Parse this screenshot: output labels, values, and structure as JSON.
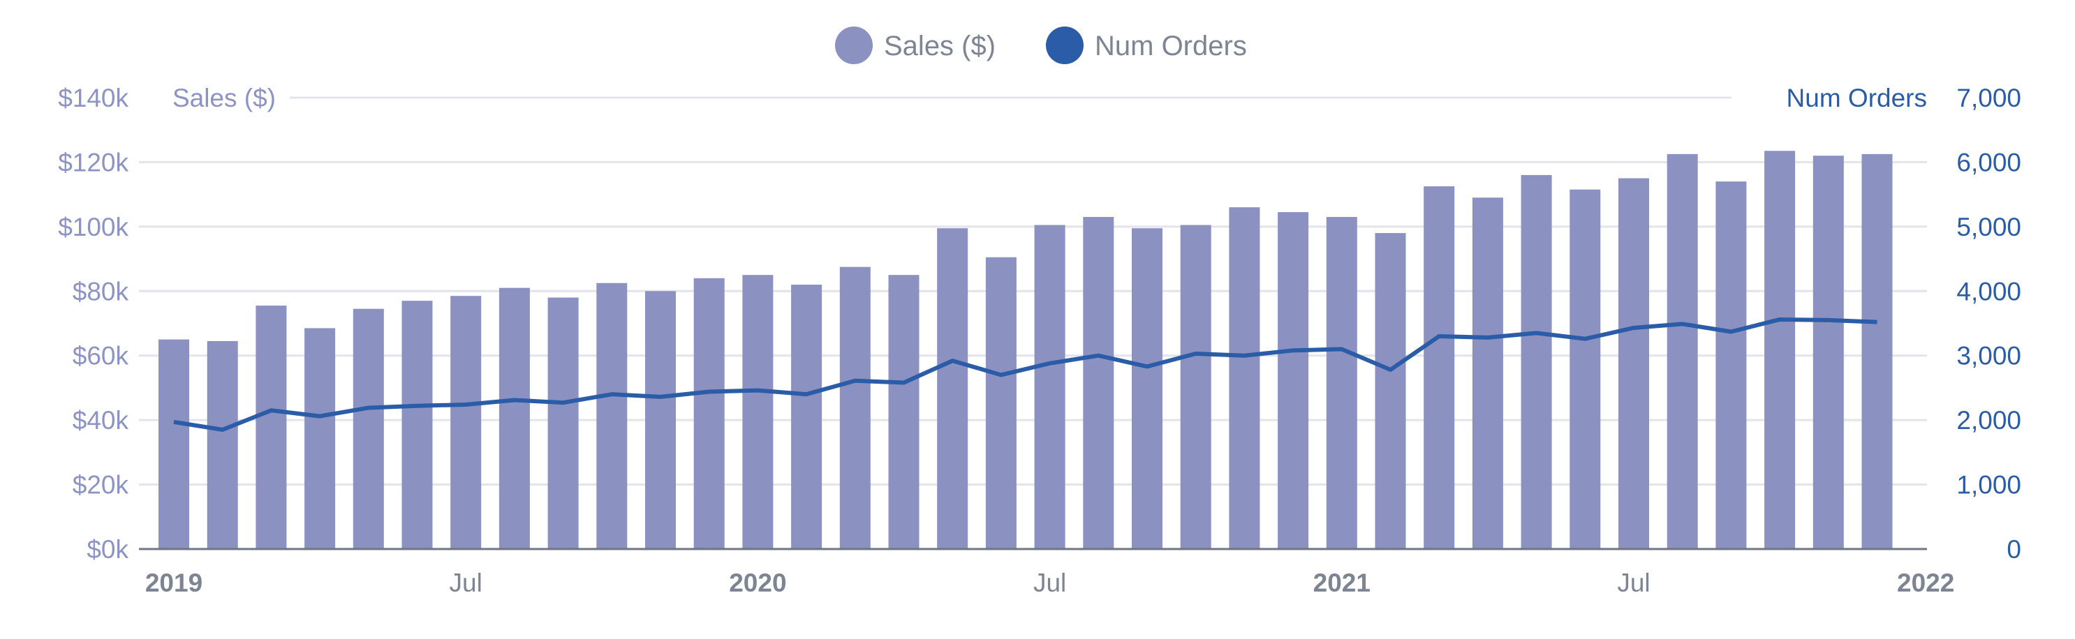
{
  "chart_data": {
    "type": "bar+line",
    "legend": {
      "position": "top-center",
      "items": [
        {
          "label": "Sales ($)",
          "color": "#8b91c0"
        },
        {
          "label": "Num Orders",
          "color": "#2a5ca8"
        }
      ]
    },
    "y_left": {
      "label": "Sales ($)",
      "range": [
        0,
        140000
      ],
      "ticks": [
        "$0k",
        "$20k",
        "$40k",
        "$60k",
        "$80k",
        "$100k",
        "$120k",
        "$140k"
      ],
      "color": "#8d93c4"
    },
    "y_right": {
      "label": "Num Orders",
      "range": [
        0,
        7000
      ],
      "ticks": [
        "0",
        "1,000",
        "2,000",
        "3,000",
        "4,000",
        "5,000",
        "6,000",
        "7,000"
      ],
      "color": "#2b5ca6"
    },
    "x_ticks": [
      {
        "label": "2019",
        "month_index": 0,
        "year": true
      },
      {
        "label": "Jul",
        "month_index": 6,
        "year": false
      },
      {
        "label": "2020",
        "month_index": 12,
        "year": true
      },
      {
        "label": "Jul",
        "month_index": 18,
        "year": false
      },
      {
        "label": "2021",
        "month_index": 24,
        "year": true
      },
      {
        "label": "Jul",
        "month_index": 30,
        "year": false
      },
      {
        "label": "2022",
        "month_index": 36,
        "year": true
      }
    ],
    "grid": true,
    "x": [
      "2019-01",
      "2019-02",
      "2019-03",
      "2019-04",
      "2019-05",
      "2019-06",
      "2019-07",
      "2019-08",
      "2019-09",
      "2019-10",
      "2019-11",
      "2019-12",
      "2020-01",
      "2020-02",
      "2020-03",
      "2020-04",
      "2020-05",
      "2020-06",
      "2020-07",
      "2020-08",
      "2020-09",
      "2020-10",
      "2020-11",
      "2020-12",
      "2021-01",
      "2021-02",
      "2021-03",
      "2021-04",
      "2021-05",
      "2021-06",
      "2021-07",
      "2021-08",
      "2021-09",
      "2021-10",
      "2021-11",
      "2021-12"
    ],
    "series": [
      {
        "name": "Sales ($)",
        "type": "bar",
        "axis": "left",
        "color": "#8b91c0",
        "values": [
          65000,
          64500,
          75500,
          68500,
          74500,
          77000,
          78500,
          81000,
          78000,
          82500,
          80000,
          84000,
          85000,
          82000,
          87500,
          85000,
          99500,
          90500,
          100500,
          103000,
          99500,
          100500,
          106000,
          104500,
          103000,
          98000,
          112500,
          109000,
          116000,
          111500,
          115000,
          122500,
          114000,
          123500,
          122000,
          122500
        ]
      },
      {
        "name": "Num Orders",
        "type": "line",
        "axis": "right",
        "color": "#2a5ca8",
        "values": [
          1970,
          1850,
          2150,
          2060,
          2190,
          2220,
          2240,
          2310,
          2270,
          2400,
          2360,
          2440,
          2460,
          2400,
          2610,
          2580,
          2920,
          2700,
          2880,
          3000,
          2830,
          3030,
          3000,
          3080,
          3100,
          2780,
          3300,
          3280,
          3350,
          3260,
          3430,
          3490,
          3370,
          3560,
          3550,
          3520
        ]
      }
    ]
  }
}
